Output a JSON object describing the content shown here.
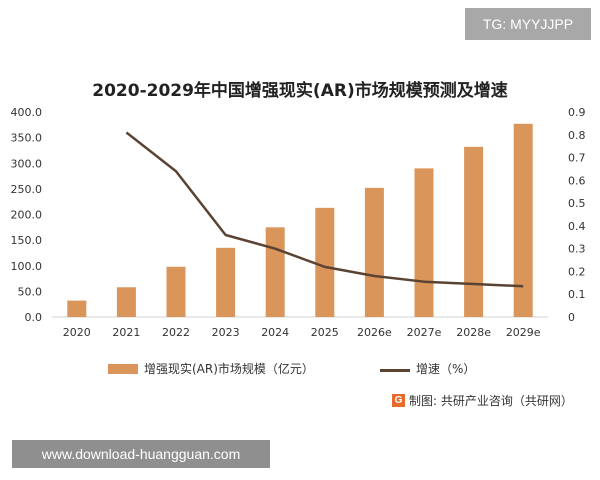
{
  "badge": {
    "text": "TG: MYYJJPP"
  },
  "source": {
    "logo": "G",
    "text": "制图: 共研产业咨询（共研网）"
  },
  "footer": {
    "text": "www.download-huangguan.com"
  },
  "chart_data": {
    "type": "bar",
    "title": "2020-2029年中国增强现实(AR)市场规模预测及增速",
    "categories": [
      "2020",
      "2021",
      "2022",
      "2023",
      "2024",
      "2025",
      "2026e",
      "2027e",
      "2028e",
      "2029e"
    ],
    "series": [
      {
        "name": "增强现实(AR)市场规模（亿元）",
        "type": "bar",
        "axis": "left",
        "color": "#d9955a",
        "values": [
          32,
          58,
          98,
          135,
          175,
          213,
          252,
          290,
          332,
          377
        ]
      },
      {
        "name": "增速（%）",
        "type": "line",
        "axis": "right",
        "color": "#5b4333",
        "values": [
          null,
          0.81,
          0.64,
          0.36,
          0.3,
          0.22,
          0.18,
          0.155,
          0.145,
          0.135
        ]
      }
    ],
    "ylim_left": [
      0,
      400
    ],
    "yticks_left": [
      "0.0",
      "50.0",
      "100.0",
      "150.0",
      "200.0",
      "250.0",
      "300.0",
      "350.0",
      "400.0"
    ],
    "ylim_right": [
      0,
      0.9
    ],
    "yticks_right": [
      "0",
      "0.1",
      "0.2",
      "0.3",
      "0.4",
      "0.5",
      "0.6",
      "0.7",
      "0.8",
      "0.9"
    ],
    "xlabel": "",
    "ylabel": "",
    "grid": false,
    "legend": "bottom"
  }
}
